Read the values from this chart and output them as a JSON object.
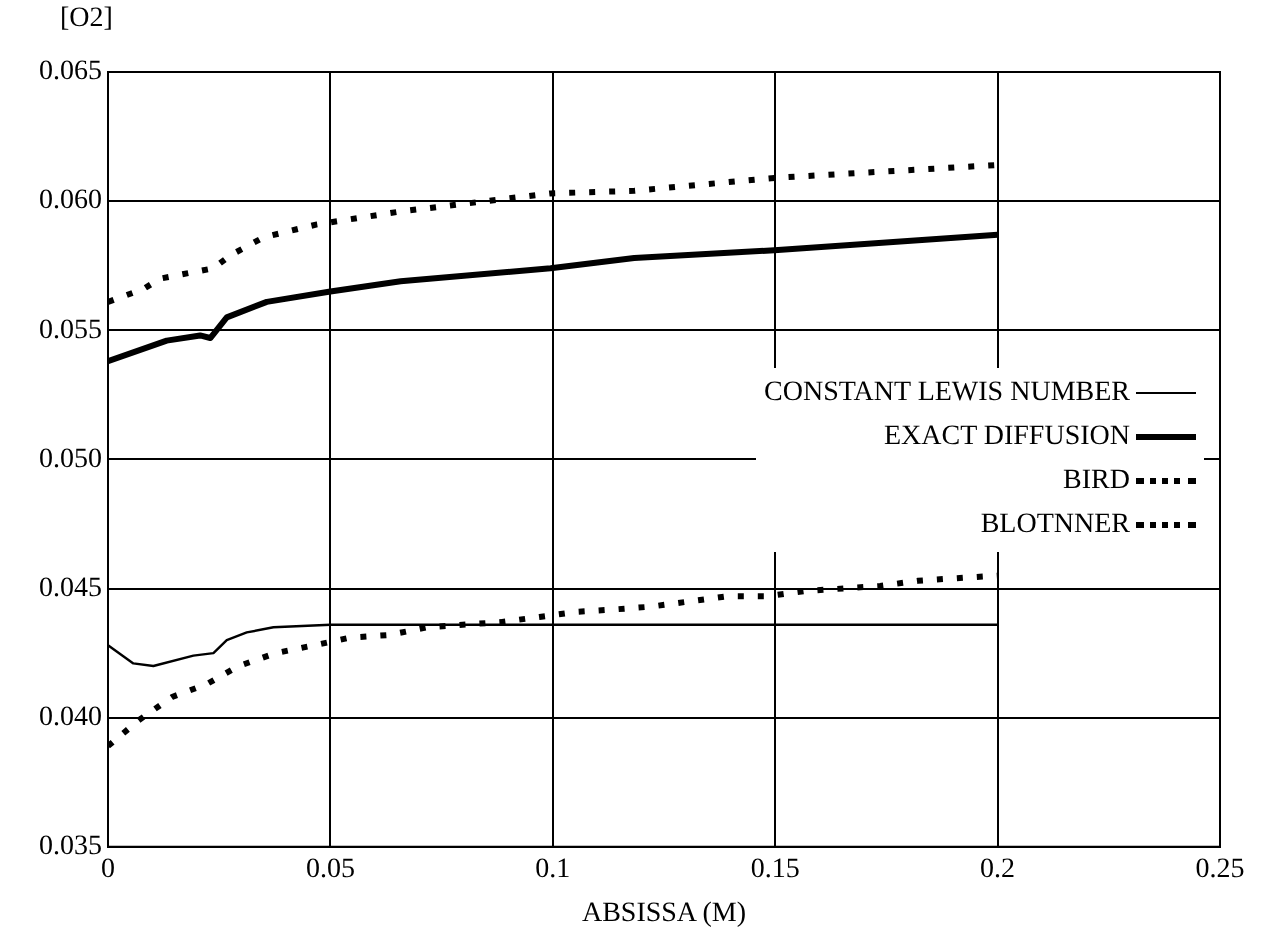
{
  "chart_data": {
    "type": "line",
    "xlabel": "ABSISSA (M)",
    "ylabel": "[O2]",
    "xlim": [
      0,
      0.25
    ],
    "xticks": [
      0,
      0.05,
      0.1,
      0.15,
      0.2,
      0.25
    ],
    "ylim": [
      0.035,
      0.065
    ],
    "yticks": [
      0.035,
      {
        "value": 0.04,
        "label": "0.040"
      },
      0.045,
      {
        "value": 0.05,
        "label": "0.050"
      },
      0.055,
      {
        "value": 0.06,
        "label": "0.060"
      },
      0.065
    ],
    "grid": true,
    "legend": "right",
    "marker": "none",
    "series": [
      {
        "name": "CONSTANT LEWIS NUMBER",
        "color": "#000000",
        "line_style": "solid",
        "x": [
          0,
          0.0057,
          0.0102,
          0.0192,
          0.0237,
          0.0267,
          0.0312,
          0.0372,
          0.05,
          0.1,
          0.15,
          0.2
        ],
        "values": [
          0.0428,
          0.0421,
          0.042,
          0.0424,
          0.0425,
          0.043,
          0.0433,
          0.0435,
          0.0436,
          0.0436,
          0.0436,
          0.0436
        ]
      },
      {
        "name": "EXACT DIFFUSION",
        "color": "#000000",
        "line_style": "solid",
        "x": [
          0,
          0.0132,
          0.0207,
          0.023,
          0.0267,
          0.0357,
          0.05,
          0.0658,
          0.0995,
          0.1183,
          0.1498,
          0.2
        ],
        "values": [
          0.0538,
          0.0546,
          0.0548,
          0.0547,
          0.0555,
          0.0561,
          0.0565,
          0.0569,
          0.0574,
          0.0578,
          0.0581,
          0.0587
        ]
      },
      {
        "name": "BIRD",
        "color": "#000000",
        "line_style": "dotted",
        "x": [
          0,
          0.008,
          0.0117,
          0.0237,
          0.0275,
          0.035,
          0.047,
          0.0658,
          0.0898,
          0.0995,
          0.1183,
          0.1498,
          0.2
        ],
        "values": [
          0.0561,
          0.0566,
          0.057,
          0.0574,
          0.0579,
          0.0586,
          0.0591,
          0.0596,
          0.0601,
          0.0603,
          0.0604,
          0.0609,
          0.0614
        ]
      },
      {
        "name": "BLOTNNER",
        "color": "#000000",
        "line_style": "dotted",
        "x": [
          0,
          0.0069,
          0.0144,
          0.0222,
          0.0294,
          0.0377,
          0.0463,
          0.0545,
          0.0632,
          0.0718,
          0.0883,
          0.097,
          0.1056,
          0.1146,
          0.1221,
          0.1393,
          0.1481,
          0.1566,
          0.1736,
          0.1821,
          0.1907,
          0.2
        ],
        "values": [
          0.0389,
          0.0399,
          0.0408,
          0.0413,
          0.042,
          0.0425,
          0.0428,
          0.0431,
          0.0432,
          0.0435,
          0.0437,
          0.0439,
          0.0441,
          0.0442,
          0.0443,
          0.0447,
          0.0447,
          0.0449,
          0.0451,
          0.0453,
          0.0454,
          0.0455
        ]
      }
    ]
  }
}
